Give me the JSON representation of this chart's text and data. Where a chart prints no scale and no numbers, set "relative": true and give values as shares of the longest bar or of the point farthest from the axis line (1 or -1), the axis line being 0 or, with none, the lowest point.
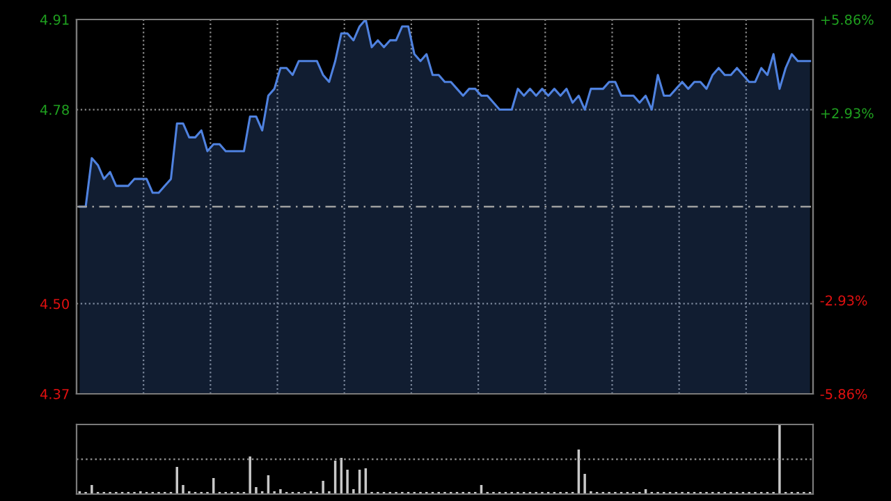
{
  "chart_data": [
    {
      "type": "area",
      "categories": [
        null,
        null,
        null,
        null,
        null,
        null,
        null,
        null,
        null,
        null,
        null,
        null,
        null,
        null,
        null,
        null,
        null,
        null,
        null,
        null,
        null,
        null,
        null,
        null,
        null,
        null,
        null,
        null,
        null,
        null,
        null,
        null,
        null,
        null,
        null,
        null,
        null,
        null,
        null,
        null,
        null,
        null,
        null,
        null,
        null,
        null,
        null,
        null,
        null,
        null,
        null,
        null,
        null,
        null,
        null,
        null,
        null,
        null,
        null,
        null,
        null,
        null,
        null,
        null,
        null,
        null,
        null,
        null,
        null,
        null,
        null,
        null,
        null,
        null,
        null,
        null,
        null,
        null,
        null,
        null,
        null,
        null,
        null,
        null,
        null,
        null,
        null,
        null,
        null,
        null,
        null,
        null,
        null,
        null,
        null,
        null,
        null,
        null,
        null,
        null,
        null,
        null,
        null,
        null,
        null,
        null,
        null,
        null,
        null,
        null,
        null,
        null,
        null,
        null,
        null,
        null,
        null,
        null,
        null,
        null,
        null
      ],
      "ylim": [
        4.37,
        4.91
      ],
      "yticks": [
        {
          "value": 4.37,
          "label": "4.37"
        },
        {
          "value": 4.5,
          "label": "4.50"
        },
        {
          "value": 4.78,
          "label": "4.78"
        },
        {
          "value": 4.91,
          "label": "4.91"
        }
      ],
      "y2lim": [
        -5.86,
        5.86
      ],
      "y2ticks": [
        {
          "value": -5.86,
          "label": "-5.86%"
        },
        {
          "value": -2.93,
          "label": "-2.93%"
        },
        {
          "value": 2.93,
          "label": "+2.93%"
        },
        {
          "value": 5.86,
          "label": "+5.86%"
        }
      ],
      "grid": true,
      "legend": false,
      "marker": "none",
      "line_style": "solid",
      "ref_lines": [
        {
          "axis": "y",
          "value": 4.64,
          "color": "#a0a0a0",
          "line_style": "dashed"
        }
      ],
      "series": [
        {
          "color": "#4f82e0",
          "values": [
            4.64,
            4.64,
            4.71,
            4.7,
            4.68,
            4.69,
            4.67,
            4.67,
            4.67,
            4.68,
            4.68,
            4.68,
            4.66,
            4.66,
            4.67,
            4.68,
            4.76,
            4.76,
            4.74,
            4.74,
            4.75,
            4.72,
            4.73,
            4.73,
            4.72,
            4.72,
            4.72,
            4.72,
            4.77,
            4.77,
            4.75,
            4.8,
            4.81,
            4.84,
            4.84,
            4.83,
            4.85,
            4.85,
            4.85,
            4.85,
            4.83,
            4.82,
            4.85,
            4.89,
            4.89,
            4.88,
            4.9,
            4.91,
            4.87,
            4.88,
            4.87,
            4.88,
            4.88,
            4.9,
            4.9,
            4.86,
            4.85,
            4.86,
            4.83,
            4.83,
            4.82,
            4.82,
            4.81,
            4.8,
            4.81,
            4.81,
            4.8,
            4.8,
            4.79,
            4.78,
            4.78,
            4.78,
            4.81,
            4.8,
            4.81,
            4.8,
            4.81,
            4.8,
            4.81,
            4.8,
            4.81,
            4.79,
            4.8,
            4.78,
            4.81,
            4.81,
            4.81,
            4.82,
            4.82,
            4.8,
            4.8,
            4.8,
            4.79,
            4.8,
            4.78,
            4.83,
            4.8,
            4.8,
            4.81,
            4.82,
            4.81,
            4.82,
            4.82,
            4.81,
            4.83,
            4.84,
            4.83,
            4.83,
            4.84,
            4.83,
            4.82,
            4.82,
            4.84,
            4.83,
            4.86,
            4.81,
            4.84,
            4.86,
            4.85,
            4.85,
            4.85
          ]
        }
      ]
    },
    {
      "type": "bar",
      "relative": true,
      "legend": false,
      "ref_lines": [
        {
          "axis": "y",
          "value": 0.5,
          "color": "#8a8a8a",
          "line_style": "dotted"
        }
      ],
      "categories": [
        null,
        null,
        null,
        null,
        null,
        null,
        null,
        null,
        null,
        null,
        null,
        null,
        null,
        null,
        null,
        null,
        null,
        null,
        null,
        null,
        null,
        null,
        null,
        null,
        null,
        null,
        null,
        null,
        null,
        null,
        null,
        null,
        null,
        null,
        null,
        null,
        null,
        null,
        null,
        null,
        null,
        null,
        null,
        null,
        null,
        null,
        null,
        null,
        null,
        null,
        null,
        null,
        null,
        null,
        null,
        null,
        null,
        null,
        null,
        null,
        null,
        null,
        null,
        null,
        null,
        null,
        null,
        null,
        null,
        null,
        null,
        null,
        null,
        null,
        null,
        null,
        null,
        null,
        null,
        null,
        null,
        null,
        null,
        null,
        null,
        null,
        null,
        null,
        null,
        null,
        null,
        null,
        null,
        null,
        null,
        null,
        null,
        null,
        null,
        null,
        null,
        null,
        null,
        null,
        null,
        null,
        null,
        null,
        null,
        null,
        null,
        null,
        null,
        null,
        null,
        null,
        null,
        null,
        null,
        null,
        null
      ],
      "series": [
        {
          "color": "#c8c8c8",
          "values": [
            0.04,
            0.03,
            0.13,
            0.03,
            0.03,
            0.03,
            0.03,
            0.03,
            0.03,
            0.03,
            0.04,
            0.03,
            0.03,
            0.03,
            0.03,
            0.03,
            0.39,
            0.13,
            0.04,
            0.03,
            0.03,
            0.03,
            0.23,
            0.03,
            0.03,
            0.03,
            0.03,
            0.03,
            0.54,
            0.1,
            0.04,
            0.27,
            0.04,
            0.07,
            0.03,
            0.03,
            0.03,
            0.03,
            0.04,
            0.03,
            0.19,
            0.04,
            0.48,
            0.52,
            0.35,
            0.07,
            0.35,
            0.37,
            0.03,
            0.03,
            0.03,
            0.03,
            0.03,
            0.03,
            0.03,
            0.03,
            0.03,
            0.03,
            0.03,
            0.03,
            0.03,
            0.03,
            0.03,
            0.03,
            0.03,
            0.03,
            0.13,
            0.03,
            0.03,
            0.03,
            0.03,
            0.03,
            0.03,
            0.03,
            0.03,
            0.03,
            0.03,
            0.03,
            0.03,
            0.03,
            0.03,
            0.03,
            0.64,
            0.29,
            0.04,
            0.03,
            0.03,
            0.03,
            0.03,
            0.03,
            0.03,
            0.03,
            0.03,
            0.07,
            0.03,
            0.03,
            0.03,
            0.03,
            0.03,
            0.03,
            0.03,
            0.03,
            0.03,
            0.03,
            0.03,
            0.03,
            0.03,
            0.03,
            0.03,
            0.03,
            0.03,
            0.03,
            0.03,
            0.03,
            0.03,
            1,
            0.03,
            0.03,
            0.03,
            0.03,
            0.03
          ]
        }
      ]
    }
  ]
}
